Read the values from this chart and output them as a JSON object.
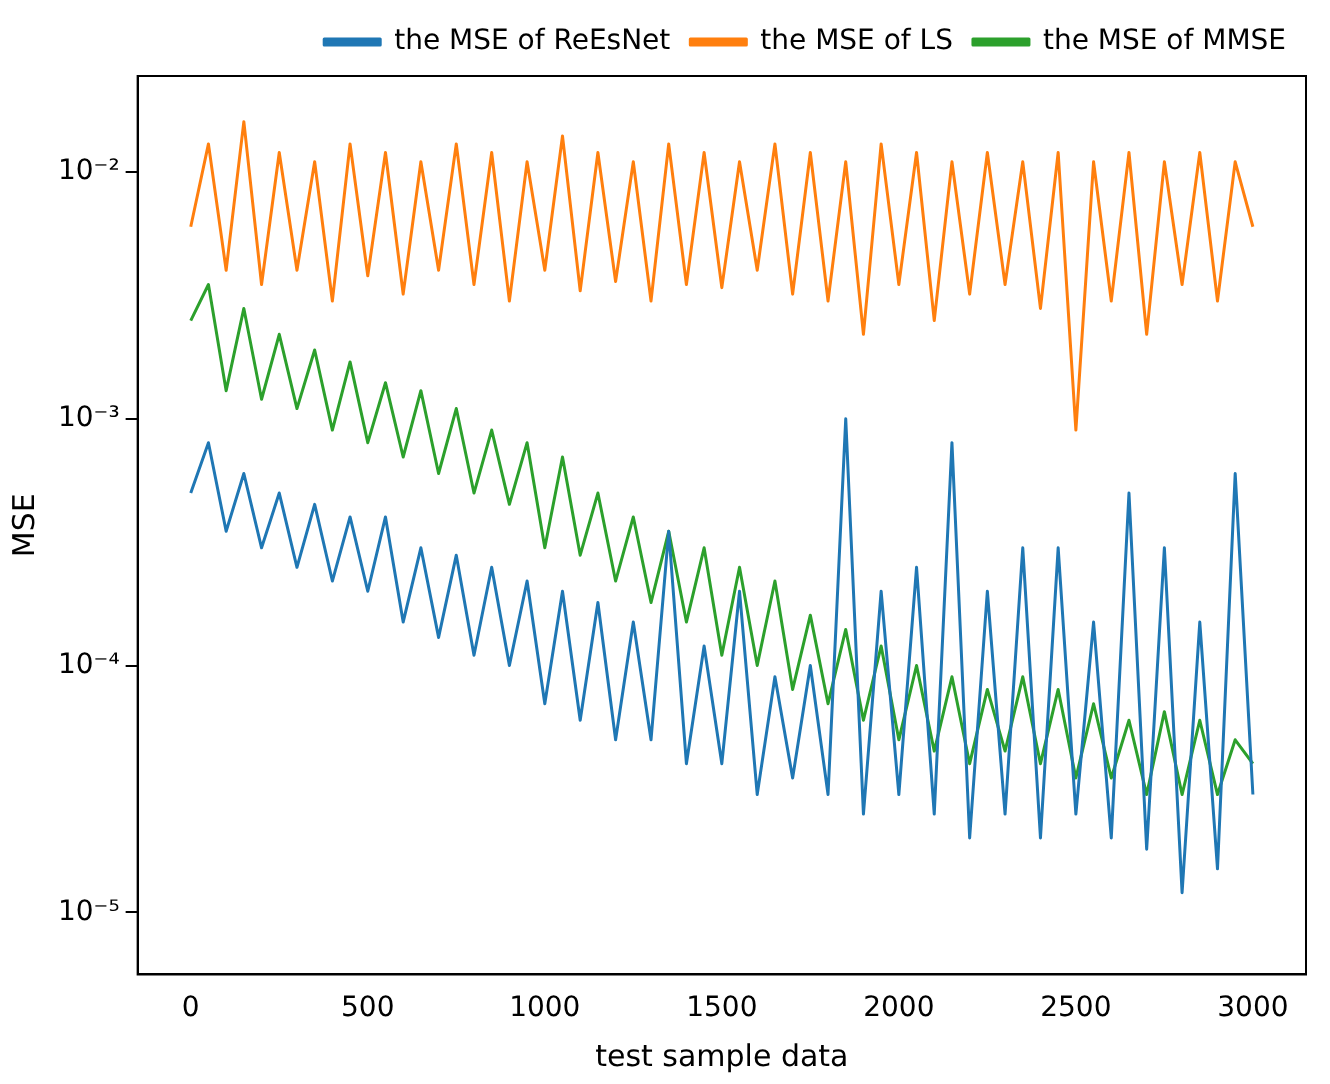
{
  "chart_data": {
    "type": "line",
    "xlabel": "test sample data",
    "ylabel": "MSE",
    "log": "y",
    "grid": false,
    "legend": "top right",
    "marker": "none",
    "line_style": "solid",
    "x": [
      0,
      50,
      100,
      150,
      200,
      250,
      300,
      350,
      400,
      450,
      500,
      550,
      600,
      650,
      700,
      750,
      800,
      850,
      900,
      950,
      1000,
      1050,
      1100,
      1150,
      1200,
      1250,
      1300,
      1350,
      1400,
      1450,
      1500,
      1550,
      1600,
      1650,
      1700,
      1750,
      1800,
      1850,
      1900,
      1950,
      2000,
      2050,
      2100,
      2150,
      2200,
      2250,
      2300,
      2350,
      2400,
      2450,
      2500,
      2550,
      2600,
      2650,
      2700,
      2750,
      2800,
      2850,
      2900,
      2950,
      3000
    ],
    "xlim": [
      -150,
      3150
    ],
    "xticks": [
      0,
      500,
      1000,
      1500,
      2000,
      2500,
      3000
    ],
    "ylim": [
      5.6e-06,
      0.0245
    ],
    "yticks": [
      {
        "value": 1e-05,
        "label": "10⁻⁵"
      },
      {
        "value": 0.0001,
        "label": "10⁻⁴"
      },
      {
        "value": 0.001,
        "label": "10⁻³"
      },
      {
        "value": 0.01,
        "label": "10⁻²"
      }
    ],
    "series": [
      {
        "name": "the MSE of ReEsNet",
        "color": "#1f77b4",
        "values": [
          0.0005,
          0.0008,
          0.00035,
          0.0006,
          0.0003,
          0.0005,
          0.00025,
          0.00045,
          0.00022,
          0.0004,
          0.0002,
          0.0004,
          0.00015,
          0.0003,
          0.00013,
          0.00028,
          0.00011,
          0.00025,
          0.0001,
          0.00022,
          7e-05,
          0.0002,
          6e-05,
          0.00018,
          5e-05,
          0.00015,
          5e-05,
          0.00035,
          4e-05,
          0.00012,
          4e-05,
          0.0002,
          3e-05,
          9e-05,
          3.5e-05,
          0.0001,
          3e-05,
          0.001,
          2.5e-05,
          0.0002,
          3e-05,
          0.00025,
          2.5e-05,
          0.0008,
          2e-05,
          0.0002,
          2.5e-05,
          0.0003,
          2e-05,
          0.0003,
          2.5e-05,
          0.00015,
          2e-05,
          0.0005,
          1.8e-05,
          0.0003,
          1.2e-05,
          0.00015,
          1.5e-05,
          0.0006,
          3e-05
        ]
      },
      {
        "name": "the MSE of LS",
        "color": "#ff7f0e",
        "values": [
          0.006,
          0.013,
          0.004,
          0.016,
          0.0035,
          0.012,
          0.004,
          0.011,
          0.003,
          0.013,
          0.0038,
          0.012,
          0.0032,
          0.011,
          0.004,
          0.013,
          0.0035,
          0.012,
          0.003,
          0.011,
          0.004,
          0.014,
          0.0033,
          0.012,
          0.0036,
          0.011,
          0.003,
          0.013,
          0.0035,
          0.012,
          0.0034,
          0.011,
          0.004,
          0.013,
          0.0032,
          0.012,
          0.003,
          0.011,
          0.0022,
          0.013,
          0.0035,
          0.012,
          0.0025,
          0.011,
          0.0032,
          0.012,
          0.0035,
          0.011,
          0.0028,
          0.012,
          0.0009,
          0.011,
          0.003,
          0.012,
          0.0022,
          0.011,
          0.0035,
          0.012,
          0.003,
          0.011,
          0.006
        ]
      },
      {
        "name": "the MSE of MMSE",
        "color": "#2ca02c",
        "values": [
          0.0025,
          0.0035,
          0.0013,
          0.0028,
          0.0012,
          0.0022,
          0.0011,
          0.0019,
          0.0009,
          0.0017,
          0.0008,
          0.0014,
          0.0007,
          0.0013,
          0.0006,
          0.0011,
          0.0005,
          0.0009,
          0.00045,
          0.0008,
          0.0003,
          0.0007,
          0.00028,
          0.0005,
          0.00022,
          0.0004,
          0.00018,
          0.00035,
          0.00015,
          0.0003,
          0.00011,
          0.00025,
          0.0001,
          0.00022,
          8e-05,
          0.00016,
          7e-05,
          0.00014,
          6e-05,
          0.00012,
          5e-05,
          0.0001,
          4.5e-05,
          9e-05,
          4e-05,
          8e-05,
          4.5e-05,
          9e-05,
          4e-05,
          8e-05,
          3.5e-05,
          7e-05,
          3.5e-05,
          6e-05,
          3e-05,
          6.5e-05,
          3e-05,
          6e-05,
          3e-05,
          5e-05,
          4e-05
        ]
      }
    ]
  }
}
